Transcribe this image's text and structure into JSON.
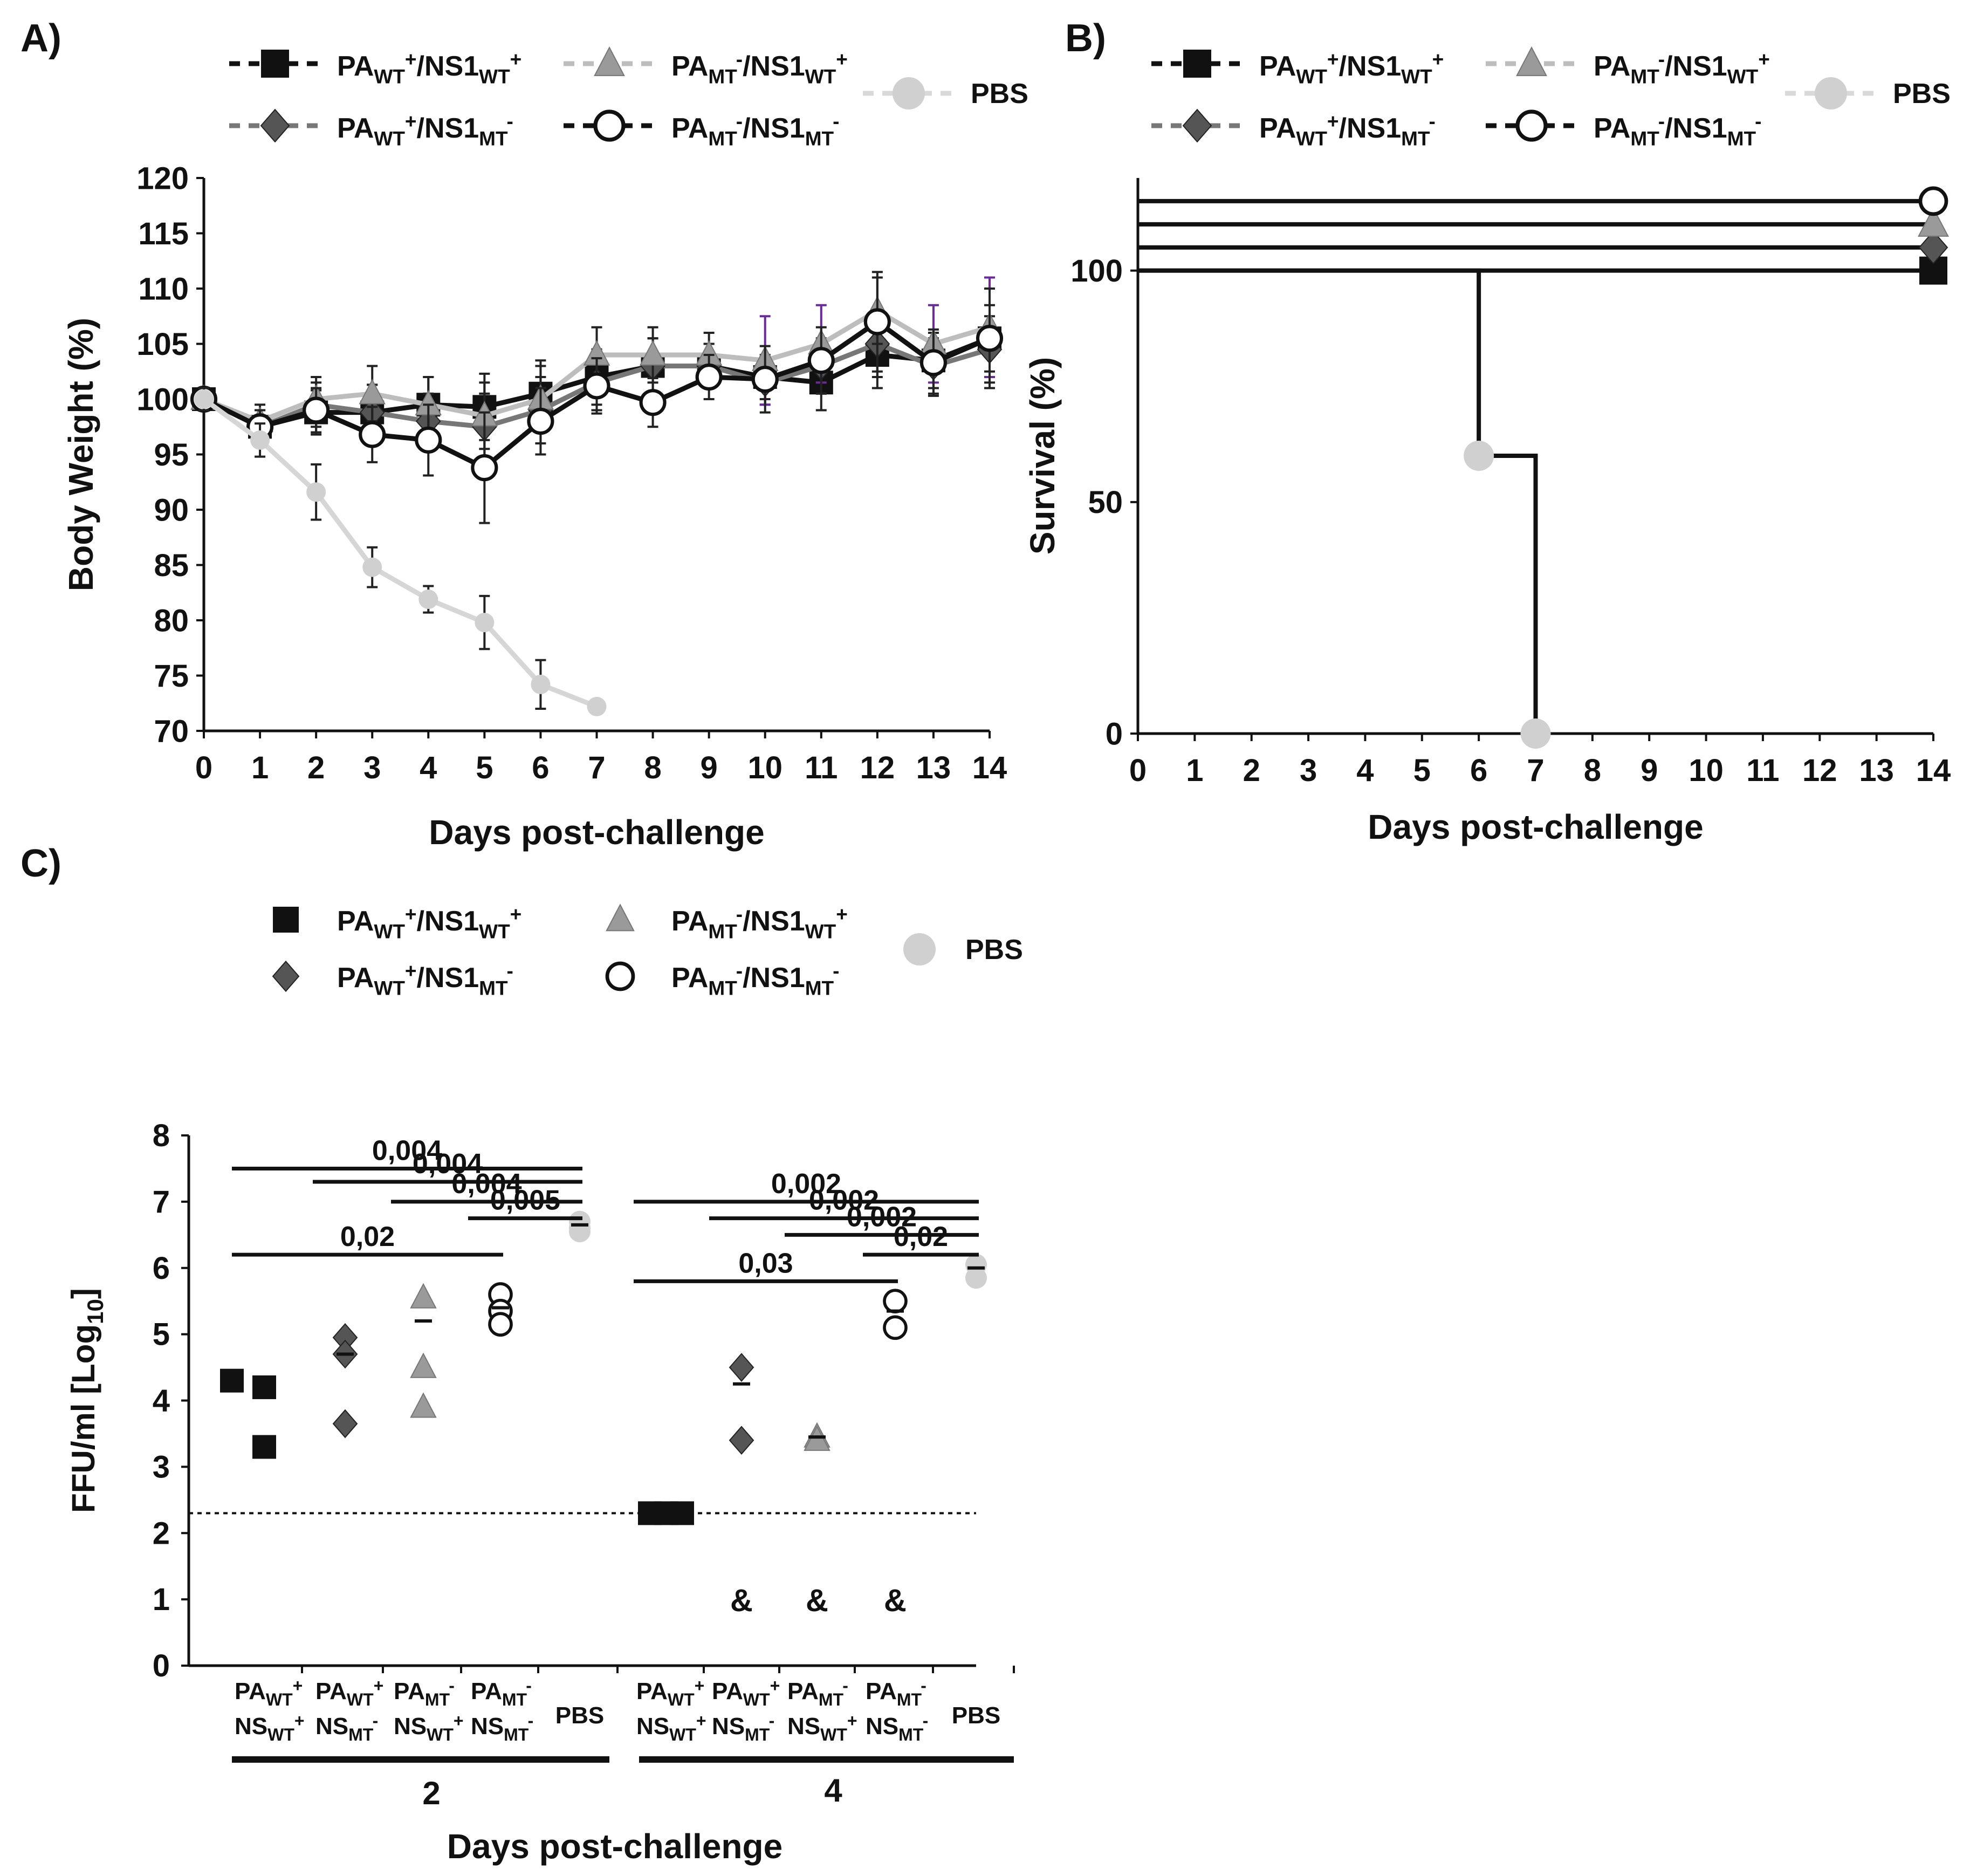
{
  "colors": {
    "wt_wt": "#111111",
    "wt_mt": "#555555",
    "mt_wt": "#9a9a9a",
    "mt_mt": "#111111",
    "pbs": "#d0d0d0",
    "purple_error": "#6a2a9a"
  },
  "legend": {
    "g1": {
      "base": "PA",
      "sub": "WT",
      "sup": "+",
      "slash": "/NS1",
      "sub2": "WT",
      "sup2": "+"
    },
    "g2": {
      "base": "PA",
      "sub": "MT",
      "sup": "-",
      "slash": "/NS1",
      "sub2": "WT",
      "sup2": "+"
    },
    "g3": {
      "base": "PA",
      "sub": "WT",
      "sup": "+",
      "slash": "/NS1",
      "sub2": "MT",
      "sup2": "-"
    },
    "g4": {
      "base": "PA",
      "sub": "MT",
      "sup": "-",
      "slash": "/NS1",
      "sub2": "MT",
      "sup2": "-"
    },
    "pbs": "PBS"
  },
  "chart_data": [
    {
      "panel": "A)",
      "type": "line",
      "title": "",
      "xlabel": "Days post-challenge",
      "ylabel": "Body Weight (%)",
      "xlim": [
        0,
        14
      ],
      "ylim": [
        70,
        120
      ],
      "xticks": [
        "0",
        "1",
        "2",
        "3",
        "4",
        "5",
        "6",
        "7",
        "8",
        "9",
        "10",
        "11",
        "12",
        "13",
        "14"
      ],
      "yticks": [
        "70",
        "75",
        "80",
        "85",
        "90",
        "95",
        "100",
        "105",
        "110",
        "115",
        "120"
      ],
      "series": [
        {
          "name": "PAWT+/NS1WT+",
          "marker": "square",
          "x": [
            0,
            1,
            2,
            3,
            4,
            5,
            6,
            7,
            8,
            9,
            10,
            11,
            12,
            13,
            14
          ],
          "values": [
            100,
            97.5,
            98.8,
            98.8,
            99.5,
            99.3,
            100.5,
            102,
            103,
            103,
            102,
            101.5,
            104,
            103.5,
            105.5
          ],
          "err": [
            1,
            1.5,
            2,
            2.5,
            2.5,
            3,
            3,
            2.5,
            2.5,
            2,
            2,
            2.5,
            3,
            2.5,
            3
          ]
        },
        {
          "name": "PAWT+/NS1MT-",
          "marker": "diamond",
          "x": [
            0,
            1,
            2,
            3,
            4,
            5,
            6,
            7,
            8,
            9,
            10,
            11,
            12,
            13,
            14
          ],
          "values": [
            100,
            97.5,
            99.5,
            98.8,
            98,
            97.5,
            99,
            101.5,
            103,
            103,
            101.5,
            103,
            105,
            103,
            104.5
          ],
          "err": [
            1,
            1.5,
            2,
            2.5,
            2.5,
            3,
            3,
            2.5,
            2.5,
            2,
            2,
            2.5,
            3,
            2.5,
            3
          ]
        },
        {
          "name": "PAMT-/NS1WT+",
          "marker": "triangle",
          "x": [
            0,
            1,
            2,
            3,
            4,
            5,
            6,
            7,
            8,
            9,
            10,
            11,
            12,
            13,
            14
          ],
          "values": [
            100,
            98,
            100,
            100.5,
            99.5,
            98.5,
            100,
            104,
            104,
            104,
            103.5,
            105,
            108,
            105,
            106.5
          ],
          "err": [
            1,
            1.5,
            2,
            2.5,
            2.5,
            3,
            3,
            2.5,
            2.5,
            2,
            4,
            3.5,
            3,
            3.5,
            4.5
          ]
        },
        {
          "name": "PAMT-/NS1MT-",
          "marker": "circle",
          "x": [
            0,
            1,
            2,
            3,
            4,
            5,
            6,
            7,
            8,
            9,
            10,
            11,
            12,
            13,
            14
          ],
          "values": [
            100,
            97.5,
            99,
            96.8,
            96.3,
            93.8,
            98,
            101.2,
            99.7,
            102,
            101.8,
            103.5,
            107,
            103.3,
            105.5
          ],
          "err": [
            1,
            1.5,
            2,
            2.5,
            3.2,
            5,
            3,
            2.5,
            2.2,
            2,
            3,
            3,
            4.5,
            3,
            4.5
          ]
        },
        {
          "name": "PBS",
          "marker": "dot",
          "x": [
            0,
            1,
            2,
            3,
            4,
            5,
            6,
            7
          ],
          "values": [
            100,
            96.3,
            91.6,
            84.8,
            81.9,
            79.8,
            74.2,
            72.2
          ],
          "err": [
            1,
            1.5,
            2.5,
            1.8,
            1.2,
            2.4,
            2.2,
            0
          ]
        }
      ]
    },
    {
      "panel": "B)",
      "type": "line",
      "title": "",
      "xlabel": "Days post-challenge",
      "ylabel": "Survival (%)",
      "xlim": [
        0,
        14
      ],
      "ylim": [
        0,
        120
      ],
      "xticks": [
        "0",
        "1",
        "2",
        "3",
        "4",
        "5",
        "6",
        "7",
        "8",
        "9",
        "10",
        "11",
        "12",
        "13",
        "14"
      ],
      "yticks": [
        "0",
        "50",
        "100"
      ],
      "series": [
        {
          "name": "PAWT+/NS1WT+",
          "marker": "square",
          "x": [
            0,
            14
          ],
          "values": [
            100,
            100
          ],
          "plot_offset": 0
        },
        {
          "name": "PAWT+/NS1MT-",
          "marker": "diamond",
          "x": [
            0,
            14
          ],
          "values": [
            100,
            100
          ],
          "plot_offset": 5
        },
        {
          "name": "PAMT-/NS1WT+",
          "marker": "triangle",
          "x": [
            0,
            14
          ],
          "values": [
            100,
            100
          ],
          "plot_offset": 10
        },
        {
          "name": "PAMT-/NS1MT-",
          "marker": "circle",
          "x": [
            0,
            14
          ],
          "values": [
            100,
            100
          ],
          "plot_offset": 15
        },
        {
          "name": "PBS",
          "marker": "dot",
          "x": [
            0,
            6,
            6,
            7,
            7
          ],
          "values": [
            100,
            100,
            60,
            60,
            0
          ],
          "plot_offset": 0
        }
      ]
    },
    {
      "panel": "C)",
      "type": "scatter",
      "title": "",
      "xlabel": "Days post-challenge",
      "ylabel": "FFU/ml [Log",
      "ylabel_sub": "10",
      "ylabel_end": "]",
      "ylim": [
        0,
        8
      ],
      "yticks": [
        "0",
        "1",
        "2",
        "3",
        "4",
        "5",
        "6",
        "7",
        "8"
      ],
      "detection_limit": 2.3,
      "day_labels": [
        "2",
        "4"
      ],
      "group_labels": [
        {
          "l1": "PA",
          "l1sub": "WT",
          "l1sup": "+",
          "l2": "NS",
          "l2sub": "WT",
          "l2sup": "+"
        },
        {
          "l1": "PA",
          "l1sub": "WT",
          "l1sup": "+",
          "l2": "NS",
          "l2sub": "MT",
          "l2sup": "-"
        },
        {
          "l1": "PA",
          "l1sub": "MT",
          "l1sup": "-",
          "l2": "NS",
          "l2sub": "WT",
          "l2sup": "+"
        },
        {
          "l1": "PA",
          "l1sub": "MT",
          "l1sup": "-",
          "l2": "NS",
          "l2sub": "MT",
          "l2sup": "-"
        },
        {
          "l1": "PBS",
          "l1sub": "",
          "l1sup": "",
          "l2": "",
          "l2sub": "",
          "l2sup": ""
        }
      ],
      "groups": [
        {
          "day": "2",
          "name": "PAWT+/NS1WT+",
          "marker": "square",
          "values": [
            4.3,
            4.2,
            3.3
          ],
          "mean": null
        },
        {
          "day": "2",
          "name": "PAWT+/NS1MT-",
          "marker": "diamond",
          "values": [
            4.95,
            4.7,
            3.65
          ],
          "mean": 4.7
        },
        {
          "day": "2",
          "name": "PAMT-/NS1WT+",
          "marker": "triangle",
          "values": [
            5.55,
            4.5,
            3.9
          ],
          "mean": 5.2
        },
        {
          "day": "2",
          "name": "PAMT-/NS1MT-",
          "marker": "circle",
          "values": [
            5.6,
            5.35,
            5.15
          ],
          "mean": 5.4
        },
        {
          "day": "2",
          "name": "PBS",
          "marker": "dot",
          "values": [
            6.7,
            6.6,
            6.55
          ],
          "mean": 6.65
        },
        {
          "day": "4",
          "name": "PAWT+/NS1WT+",
          "marker": "square",
          "values": [
            2.3,
            2.3,
            2.3
          ],
          "mean": 2.3
        },
        {
          "day": "4",
          "name": "PAWT+/NS1MT-",
          "marker": "diamond",
          "values": [
            4.5,
            3.4
          ],
          "mean": 4.25
        },
        {
          "day": "4",
          "name": "PAMT-/NS1WT+",
          "marker": "triangle",
          "values": [
            3.45,
            3.4
          ],
          "mean": 3.45
        },
        {
          "day": "4",
          "name": "PAMT-/NS1MT-",
          "marker": "circle",
          "values": [
            5.5,
            5.1
          ],
          "mean": 5.35
        },
        {
          "day": "4",
          "name": "PBS",
          "marker": "dot",
          "values": [
            6.05,
            5.85
          ],
          "mean": 6.0
        }
      ],
      "ampersand": "&",
      "ampersand_groups": [
        6,
        7,
        8
      ],
      "significance": [
        {
          "day": "2",
          "from": 0,
          "to": 4,
          "p": "0,004",
          "level": 7.5
        },
        {
          "day": "2",
          "from": 1,
          "to": 4,
          "p": "0,004",
          "level": 7.3
        },
        {
          "day": "2",
          "from": 2,
          "to": 4,
          "p": "0,004",
          "level": 7.0
        },
        {
          "day": "2",
          "from": 3,
          "to": 4,
          "p": "0,005",
          "level": 6.75
        },
        {
          "day": "2",
          "from": 0,
          "to": 3,
          "p": "0,02",
          "level": 6.2
        },
        {
          "day": "4",
          "from": 0,
          "to": 4,
          "p": "0,002",
          "level": 7.0
        },
        {
          "day": "4",
          "from": 1,
          "to": 4,
          "p": "0,002",
          "level": 6.75
        },
        {
          "day": "4",
          "from": 2,
          "to": 4,
          "p": "0,002",
          "level": 6.5
        },
        {
          "day": "4",
          "from": 3,
          "to": 4,
          "p": "0,02",
          "level": 6.2
        },
        {
          "day": "4",
          "from": 0,
          "to": 3,
          "p": "0,03",
          "level": 5.8
        }
      ]
    }
  ]
}
